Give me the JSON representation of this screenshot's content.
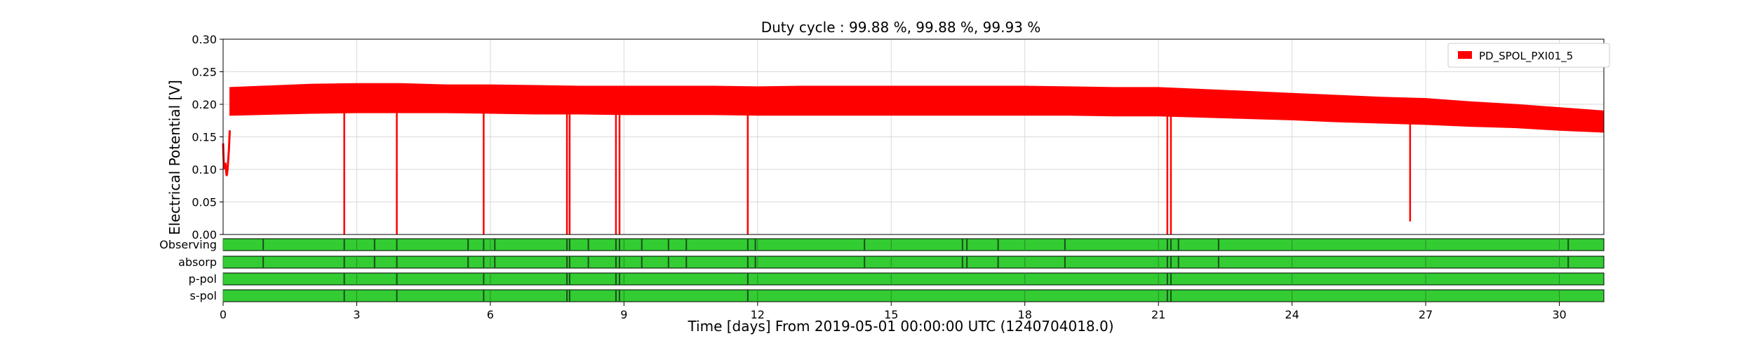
{
  "chart_data": {
    "type": "line",
    "title": "Duty cycle : 99.88 %, 99.88 %, 99.93 %",
    "xlabel": "Time [days] From 2019-05-01 00:00:00 UTC (1240704018.0)",
    "ylabel": "Electrical Potential [V]",
    "xlim": [
      0,
      31
    ],
    "ylim": [
      0,
      0.3
    ],
    "x_ticks": [
      0,
      3,
      6,
      9,
      12,
      15,
      18,
      21,
      24,
      27,
      30
    ],
    "x_tick_labels": [
      "0",
      "3",
      "6",
      "9",
      "12",
      "15",
      "18",
      "21",
      "24",
      "27",
      "30"
    ],
    "y_ticks": [
      0,
      0.05,
      0.1,
      0.15,
      0.2,
      0.25,
      0.3
    ],
    "y_tick_labels": [
      "0.00",
      "0.05",
      "0.10",
      "0.15",
      "0.20",
      "0.25",
      "0.30"
    ],
    "grid": true,
    "legend_position": "top-right",
    "series": [
      {
        "name": "PD_SPOL_PXI01_5",
        "color": "#ff0000",
        "envelope": {
          "x": [
            0.15,
            2,
            3,
            4,
            5,
            6,
            7,
            8,
            9,
            10,
            11,
            12,
            13,
            14,
            15,
            16,
            17,
            18,
            19,
            20,
            21,
            22,
            23,
            24,
            25,
            26,
            27,
            28,
            29,
            30,
            31
          ],
          "upper": [
            0.226,
            0.231,
            0.232,
            0.232,
            0.23,
            0.23,
            0.229,
            0.228,
            0.228,
            0.228,
            0.228,
            0.227,
            0.228,
            0.228,
            0.228,
            0.228,
            0.228,
            0.228,
            0.227,
            0.226,
            0.226,
            0.223,
            0.22,
            0.217,
            0.214,
            0.211,
            0.209,
            0.204,
            0.2,
            0.195,
            0.19
          ],
          "lower": [
            0.183,
            0.186,
            0.187,
            0.187,
            0.187,
            0.186,
            0.185,
            0.185,
            0.184,
            0.184,
            0.184,
            0.183,
            0.183,
            0.183,
            0.183,
            0.183,
            0.183,
            0.183,
            0.183,
            0.182,
            0.182,
            0.18,
            0.178,
            0.176,
            0.173,
            0.171,
            0.169,
            0.166,
            0.164,
            0.16,
            0.157
          ]
        },
        "start_segment": {
          "x": [
            0,
            0.02,
            0.05,
            0.08,
            0.1,
            0.13,
            0.15
          ],
          "y": [
            0.14,
            0.1,
            0.11,
            0.09,
            0.1,
            0.13,
            0.16
          ]
        },
        "drops": [
          {
            "x": 2.72,
            "y": 0.0
          },
          {
            "x": 3.9,
            "y": 0.0
          },
          {
            "x": 5.85,
            "y": 0.0
          },
          {
            "x": 7.72,
            "y": 0.0
          },
          {
            "x": 7.78,
            "y": 0.0
          },
          {
            "x": 8.82,
            "y": 0.0
          },
          {
            "x": 8.9,
            "y": 0.0
          },
          {
            "x": 11.78,
            "y": 0.0
          },
          {
            "x": 21.2,
            "y": 0.0
          },
          {
            "x": 21.28,
            "y": 0.0
          },
          {
            "x": 26.65,
            "y": 0.02
          }
        ]
      }
    ],
    "segments": [
      {
        "label": "Observing",
        "color": "#33cc33",
        "gaps": [
          0.9,
          2.72,
          3.4,
          3.9,
          5.5,
          5.85,
          6.1,
          7.72,
          7.78,
          8.2,
          8.82,
          8.9,
          9.4,
          10.0,
          10.4,
          11.78,
          11.95,
          14.4,
          16.6,
          16.7,
          17.4,
          18.9,
          21.2,
          21.28,
          21.45,
          22.35,
          30.2
        ]
      },
      {
        "label": "absorp",
        "color": "#33cc33",
        "gaps": [
          0.9,
          2.72,
          3.4,
          3.9,
          5.5,
          5.85,
          6.1,
          7.72,
          7.78,
          8.2,
          8.82,
          8.9,
          9.4,
          10.0,
          10.4,
          11.78,
          11.95,
          14.4,
          16.6,
          16.7,
          17.4,
          18.9,
          21.2,
          21.28,
          21.45,
          22.35,
          30.2
        ]
      },
      {
        "label": "p-pol",
        "color": "#33cc33",
        "gaps": [
          2.72,
          3.9,
          5.85,
          7.72,
          7.78,
          8.82,
          8.9,
          11.78,
          21.2,
          21.28
        ]
      },
      {
        "label": "s-pol",
        "color": "#33cc33",
        "gaps": [
          2.72,
          3.9,
          5.85,
          7.72,
          7.78,
          8.82,
          8.9,
          11.78,
          21.2,
          21.28
        ]
      }
    ]
  }
}
